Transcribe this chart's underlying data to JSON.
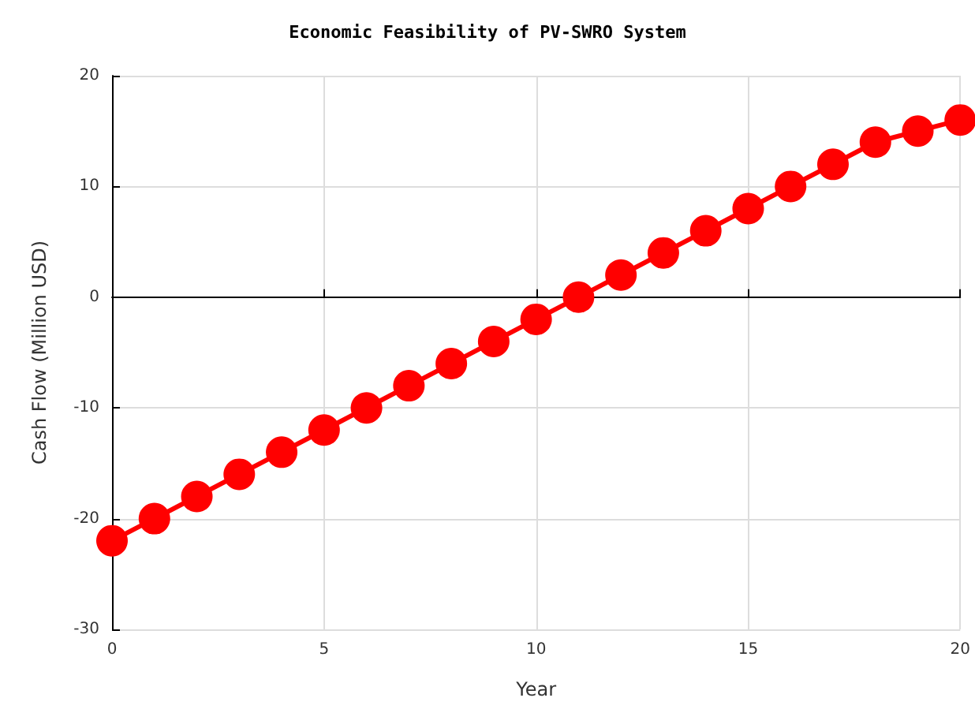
{
  "chart_data": {
    "type": "line",
    "title": "Economic Feasibility of PV-SWRO System",
    "xlabel": "Year",
    "ylabel": "Cash Flow (Million USD)",
    "x": [
      0,
      1,
      2,
      3,
      4,
      5,
      6,
      7,
      8,
      9,
      10,
      11,
      12,
      13,
      14,
      15,
      16,
      17,
      18,
      19,
      20
    ],
    "series": [
      {
        "color": "#ff0000",
        "values": [
          -22,
          -20,
          -18,
          -16,
          -14,
          -12,
          -10,
          -8,
          -6,
          -4,
          -2,
          0,
          2,
          4,
          6,
          8,
          10,
          12,
          14,
          15,
          16
        ]
      }
    ],
    "xlim": [
      0,
      20
    ],
    "xticks": [
      0,
      5,
      10,
      15,
      20
    ],
    "ylim": [
      -30,
      20
    ],
    "yticks": [
      -30,
      -20,
      -10,
      0,
      10,
      20
    ],
    "grid": true,
    "marker": "circle",
    "line_style": "solid"
  }
}
